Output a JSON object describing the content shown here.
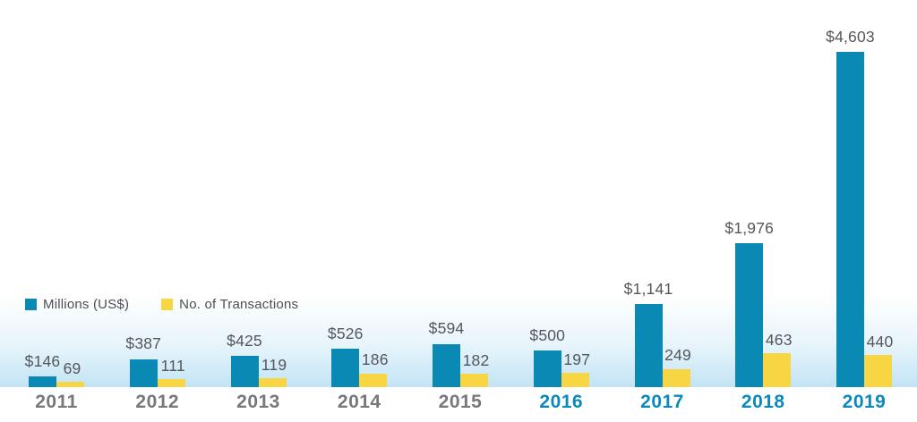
{
  "chart_data": {
    "type": "bar",
    "categories": [
      "2011",
      "2012",
      "2013",
      "2014",
      "2015",
      "2016",
      "2017",
      "2018",
      "2019"
    ],
    "series": [
      {
        "name": "Millions (US$)",
        "color": "#0989B4",
        "values": [
          146,
          387,
          425,
          526,
          594,
          500,
          1141,
          1976,
          4603
        ],
        "labels": [
          "$146",
          "$387",
          "$425",
          "$526",
          "$594",
          "$500",
          "$1,141",
          "$1,976",
          "$4,603"
        ]
      },
      {
        "name": "No. of Transactions",
        "color": "#F8D543",
        "values": [
          69,
          111,
          119,
          186,
          182,
          197,
          249,
          463,
          440
        ],
        "labels": [
          "69",
          "111",
          "119",
          "186",
          "182",
          "197",
          "249",
          "463",
          "440"
        ]
      }
    ],
    "title": "",
    "xlabel": "",
    "ylabel": "",
    "ylim": [
      0,
      4603
    ],
    "grid": false,
    "legend_position": "middle-left",
    "highlighted_categories": [
      "2016",
      "2017",
      "2018",
      "2019"
    ]
  },
  "colors": {
    "value_label": "#55565B",
    "year_default": "#77787B",
    "year_highlight": "#0C89BC",
    "legend_text": "#4D4E52",
    "baseline_glow": "#C2E4F5"
  }
}
